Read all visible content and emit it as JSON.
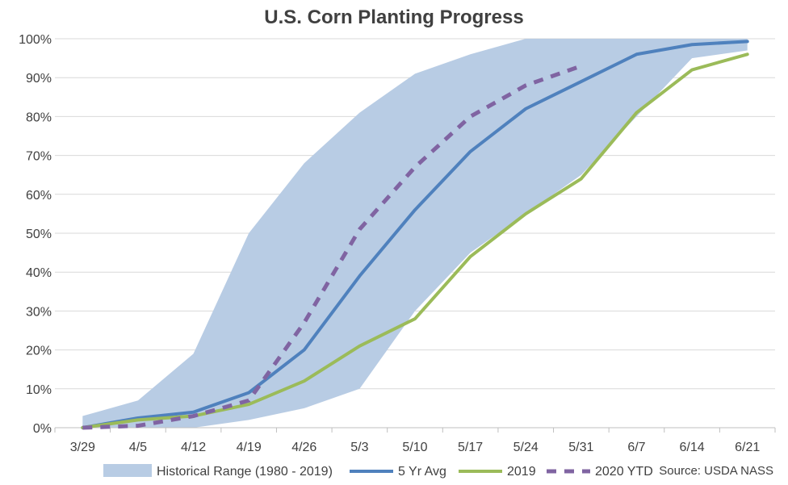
{
  "chart_data": {
    "type": "line",
    "title": "U.S. Corn Planting Progress",
    "xlabel": "",
    "ylabel": "",
    "categories": [
      "3/29",
      "4/5",
      "4/12",
      "4/19",
      "4/26",
      "5/3",
      "5/10",
      "5/17",
      "5/24",
      "5/31",
      "6/7",
      "6/14",
      "6/21"
    ],
    "ylim": [
      0,
      100
    ],
    "yticks": [
      "0%",
      "10%",
      "20%",
      "30%",
      "40%",
      "50%",
      "60%",
      "70%",
      "80%",
      "90%",
      "100%"
    ],
    "grid": true,
    "legend_position": "bottom",
    "range": {
      "name": "Historical Range (1980 - 2019)",
      "color": "#b8cce4",
      "low": [
        0,
        0,
        0,
        2,
        5,
        10,
        30,
        45,
        55,
        65,
        80,
        95,
        97
      ],
      "high": [
        3,
        7,
        19,
        50,
        68,
        81,
        91,
        96,
        100,
        100,
        100,
        100,
        100
      ]
    },
    "series": [
      {
        "name": "5 Yr Avg",
        "color": "#4f81bd",
        "dashed": false,
        "values": [
          0,
          2.5,
          4,
          9,
          20,
          39,
          56,
          71,
          82,
          89,
          96,
          98.5,
          99.3
        ]
      },
      {
        "name": "2019",
        "color": "#9bbb59",
        "dashed": false,
        "values": [
          0,
          2,
          3,
          6,
          12,
          21,
          28,
          44,
          55,
          64,
          81,
          92,
          96
        ]
      },
      {
        "name": "2020 YTD",
        "color": "#8064a2",
        "dashed": true,
        "values": [
          0,
          0.5,
          3,
          7,
          27,
          51,
          67,
          80,
          88,
          93,
          null,
          null,
          null
        ]
      }
    ]
  },
  "source": "Source: USDA NASS"
}
